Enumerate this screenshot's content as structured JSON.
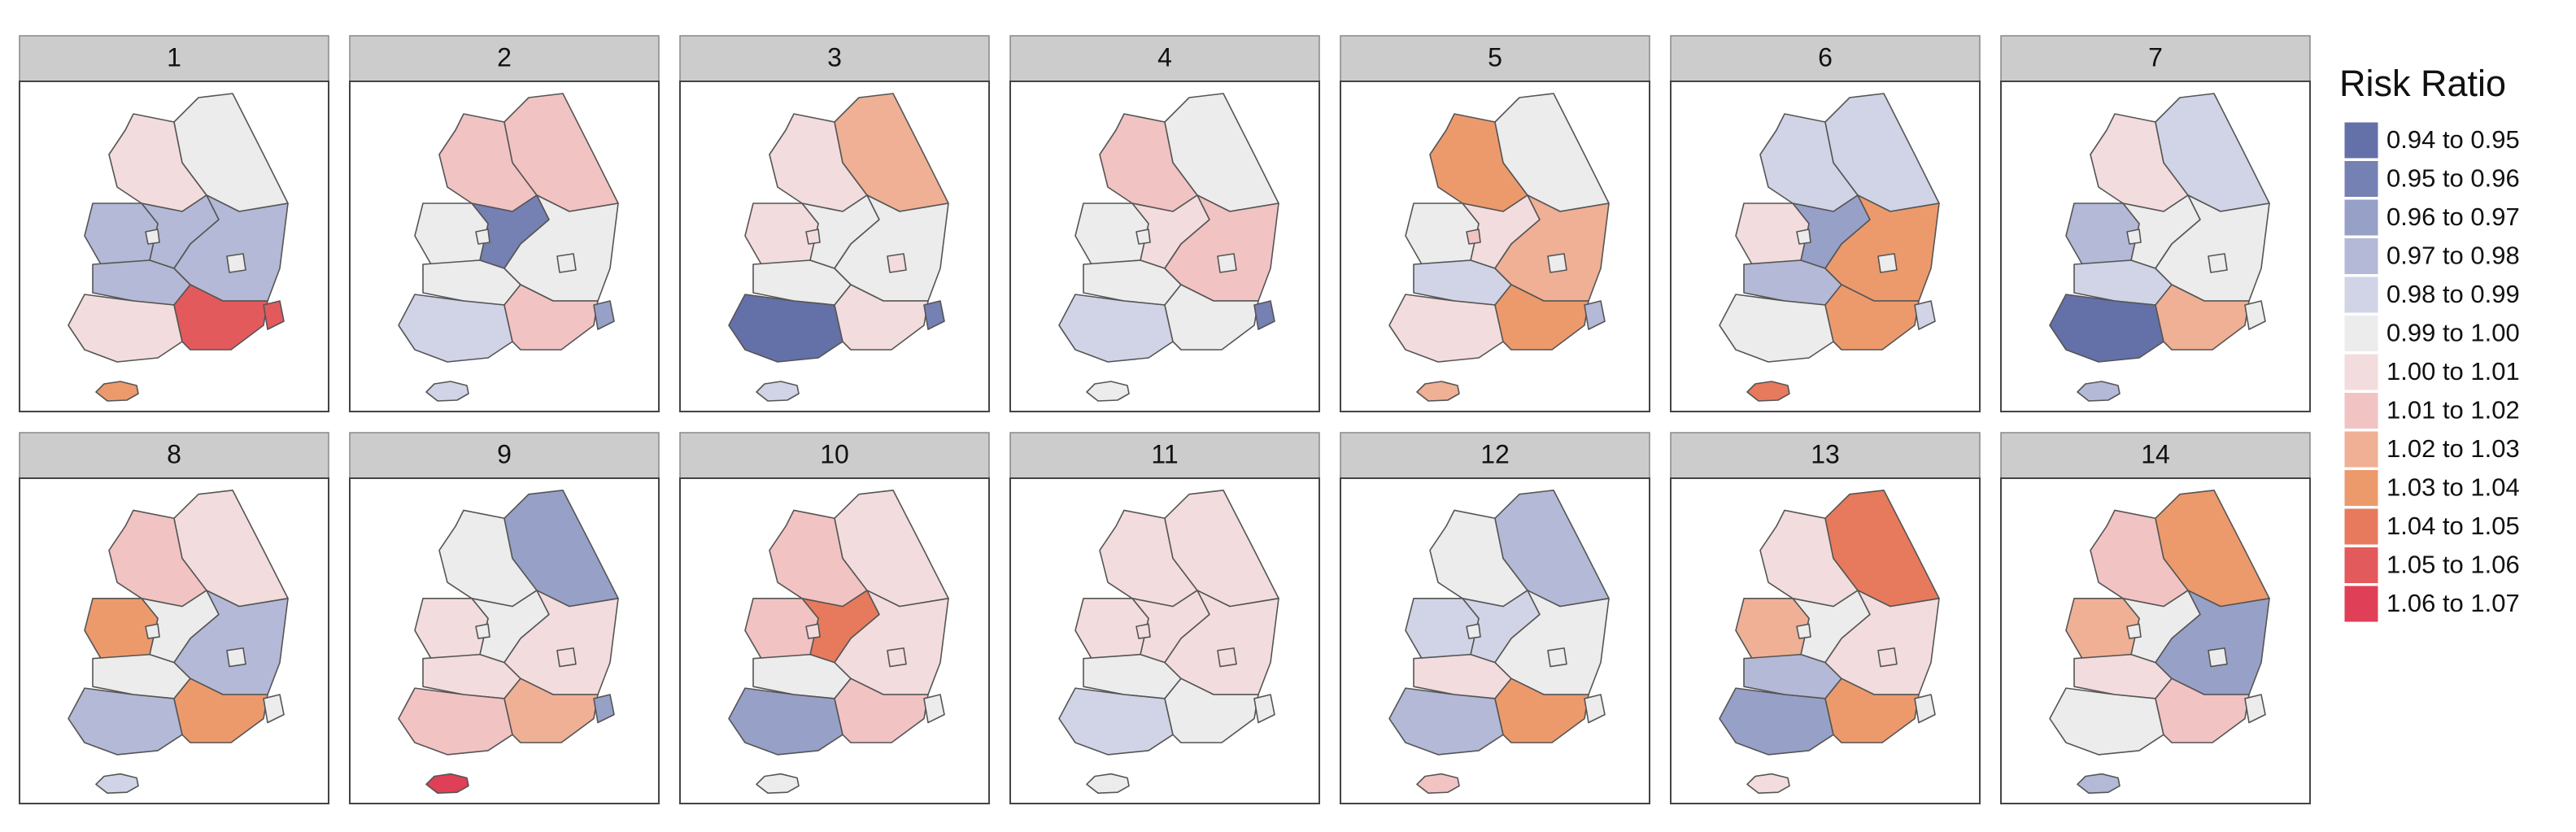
{
  "legend": {
    "title": "Risk Ratio",
    "items": [
      {
        "label": "0.94 to 0.95",
        "color": "#6470a8"
      },
      {
        "label": "0.95 to 0.96",
        "color": "#7580b3"
      },
      {
        "label": "0.96 to 0.97",
        "color": "#97a0c7"
      },
      {
        "label": "0.97 to 0.98",
        "color": "#b3b9d6"
      },
      {
        "label": "0.98 to 0.99",
        "color": "#d0d4e6"
      },
      {
        "label": "0.99 to 1.00",
        "color": "#ececec"
      },
      {
        "label": "1.00 to 1.01",
        "color": "#f3dcdd"
      },
      {
        "label": "1.01 to 1.02",
        "color": "#f2c3c3"
      },
      {
        "label": "1.02 to 1.03",
        "color": "#efb095"
      },
      {
        "label": "1.03 to 1.04",
        "color": "#ec9a6c"
      },
      {
        "label": "1.04 to 1.05",
        "color": "#e77a5c"
      },
      {
        "label": "1.05 to 1.06",
        "color": "#e35a5c"
      },
      {
        "label": "1.06 to 1.07",
        "color": "#df3f57"
      }
    ]
  },
  "panels": [
    {
      "title": "1",
      "colors": [
        "#f3dcdd",
        "#f3dcdd",
        "#ececec",
        "#b3b9d6",
        "#b3b9d6",
        "#ececec",
        "#b3b9d6",
        "#f3dcdd",
        "#f3dcdd",
        "#b3b9d6",
        "#ececec",
        "#e35a5c",
        "#e35a5c",
        "#ec9a6c"
      ]
    },
    {
      "title": "2",
      "colors": [
        "#ececec",
        "#f2c3c3",
        "#f2c3c3",
        "#7580b3",
        "#ececec",
        "#ececec",
        "#ececec",
        "#ececec",
        "#d0d4e6",
        "#ececec",
        "#ececec",
        "#f2c3c3",
        "#97a0c7",
        "#d0d4e6"
      ]
    },
    {
      "title": "3",
      "colors": [
        "#f3dcdd",
        "#f3dcdd",
        "#efb095",
        "#ececec",
        "#f3dcdd",
        "#f3dcdd",
        "#ececec",
        "#f3dcdd",
        "#6470a8",
        "#ececec",
        "#f3dcdd",
        "#f3dcdd",
        "#7580b3",
        "#d0d4e6"
      ]
    },
    {
      "title": "4",
      "colors": [
        "#f3dcdd",
        "#f2c3c3",
        "#ececec",
        "#f3dcdd",
        "#ececec",
        "#ececec",
        "#ececec",
        "#ececec",
        "#d0d4e6",
        "#f2c3c3",
        "#ececec",
        "#ececec",
        "#7580b3",
        "#ececec"
      ]
    },
    {
      "title": "5",
      "colors": [
        "#f3dcdd",
        "#ec9a6c",
        "#ececec",
        "#f3dcdd",
        "#ececec",
        "#f2c3c3",
        "#d0d4e6",
        "#f3dcdd",
        "#f3dcdd",
        "#efb095",
        "#ececec",
        "#ec9a6c",
        "#b3b9d6",
        "#efb095"
      ]
    },
    {
      "title": "6",
      "colors": [
        "#f3dcdd",
        "#d0d4e6",
        "#d0d4e6",
        "#97a0c7",
        "#f3dcdd",
        "#ececec",
        "#b3b9d6",
        "#ececec",
        "#ececec",
        "#ec9a6c",
        "#ececec",
        "#ec9a6c",
        "#d0d4e6",
        "#e77a5c"
      ]
    },
    {
      "title": "7",
      "colors": [
        "#f3dcdd",
        "#f3dcdd",
        "#d0d4e6",
        "#ececec",
        "#b3b9d6",
        "#ececec",
        "#d0d4e6",
        "#ececec",
        "#6470a8",
        "#ececec",
        "#ececec",
        "#efb095",
        "#ececec",
        "#b3b9d6"
      ]
    },
    {
      "title": "8",
      "colors": [
        "#f3dcdd",
        "#f2c3c3",
        "#f3dcdd",
        "#ececec",
        "#ec9a6c",
        "#ececec",
        "#ececec",
        "#d0d4e6",
        "#b3b9d6",
        "#b3b9d6",
        "#ececec",
        "#ec9a6c",
        "#ececec",
        "#d0d4e6"
      ]
    },
    {
      "title": "9",
      "colors": [
        "#ececec",
        "#ececec",
        "#97a0c7",
        "#ececec",
        "#f3dcdd",
        "#ececec",
        "#f3dcdd",
        "#f3dcdd",
        "#f2c3c3",
        "#f3dcdd",
        "#f3dcdd",
        "#efb095",
        "#97a0c7",
        "#df3f57"
      ]
    },
    {
      "title": "10",
      "colors": [
        "#e35a5c",
        "#f2c3c3",
        "#f3dcdd",
        "#e77a5c",
        "#f2c3c3",
        "#f3dcdd",
        "#ececec",
        "#ececec",
        "#97a0c7",
        "#f3dcdd",
        "#f3dcdd",
        "#f2c3c3",
        "#ececec",
        "#ececec"
      ]
    },
    {
      "title": "11",
      "colors": [
        "#f3dcdd",
        "#f3dcdd",
        "#f3dcdd",
        "#f3dcdd",
        "#f3dcdd",
        "#f3dcdd",
        "#ececec",
        "#ececec",
        "#d0d4e6",
        "#f3dcdd",
        "#f3dcdd",
        "#ececec",
        "#ececec",
        "#ececec"
      ]
    },
    {
      "title": "12",
      "colors": [
        "#b3b9d6",
        "#ececec",
        "#b3b9d6",
        "#d0d4e6",
        "#d0d4e6",
        "#ececec",
        "#f3dcdd",
        "#f3dcdd",
        "#b3b9d6",
        "#ececec",
        "#ececec",
        "#ec9a6c",
        "#ececec",
        "#f2c3c3"
      ]
    },
    {
      "title": "13",
      "colors": [
        "#f3dcdd",
        "#f3dcdd",
        "#e77a5c",
        "#ececec",
        "#efb095",
        "#ececec",
        "#b3b9d6",
        "#f3dcdd",
        "#97a0c7",
        "#f3dcdd",
        "#f3dcdd",
        "#ec9a6c",
        "#ececec",
        "#f3dcdd"
      ]
    },
    {
      "title": "14",
      "colors": [
        "#ececec",
        "#f2c3c3",
        "#ec9a6c",
        "#ececec",
        "#efb095",
        "#ececec",
        "#f3dcdd",
        "#ececec",
        "#ececec",
        "#97a0c7",
        "#ececec",
        "#f2c3c3",
        "#ececec",
        "#b3b9d6"
      ]
    }
  ]
}
